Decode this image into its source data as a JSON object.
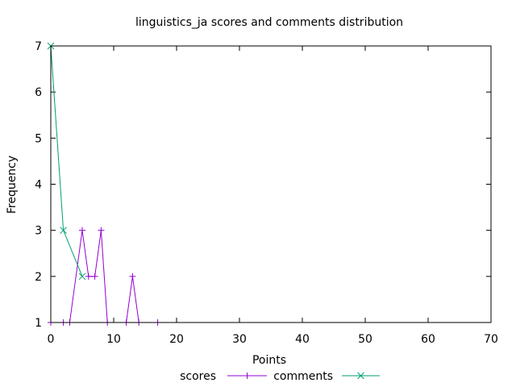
{
  "chart_data": {
    "type": "line",
    "title": "linguistics_ja scores and comments distribution",
    "xlabel": "Points",
    "ylabel": "Frequency",
    "xlim": [
      0,
      70
    ],
    "ylim": [
      1,
      7
    ],
    "xticks": [
      0,
      10,
      20,
      30,
      40,
      50,
      60,
      70
    ],
    "yticks": [
      1,
      2,
      3,
      4,
      5,
      6,
      7
    ],
    "legend_position": "bottom-center",
    "series": [
      {
        "name": "scores",
        "color": "#9400d3",
        "marker": "plus",
        "points": [
          {
            "x": 0,
            "y": 1
          },
          {
            "x": 2,
            "y": 1
          },
          {
            "x": 3,
            "y": 1
          },
          {
            "x": 5,
            "y": 3
          },
          {
            "x": 6,
            "y": 2
          },
          {
            "x": 7,
            "y": 2
          },
          {
            "x": 8,
            "y": 3
          },
          {
            "x": 9,
            "y": 1
          },
          {
            "x": 12,
            "y": 1
          },
          {
            "x": 13,
            "y": 2
          },
          {
            "x": 14,
            "y": 1
          },
          {
            "x": 17,
            "y": 1
          }
        ]
      },
      {
        "name": "comments",
        "color": "#009e73",
        "marker": "cross",
        "points": [
          {
            "x": 0,
            "y": 7
          },
          {
            "x": 2,
            "y": 3
          },
          {
            "x": 5,
            "y": 2
          }
        ]
      }
    ]
  }
}
